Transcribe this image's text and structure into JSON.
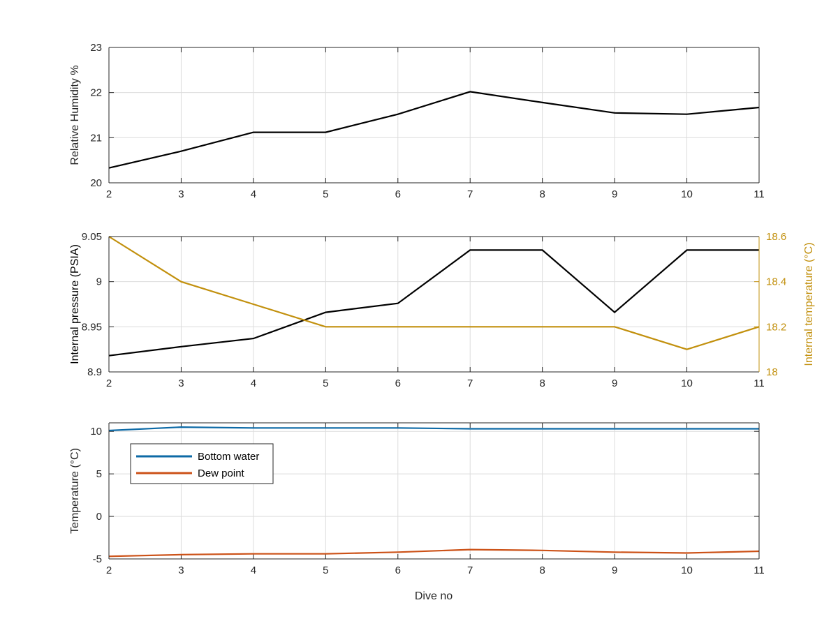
{
  "figure": {
    "xlabel": "Dive no"
  },
  "chart_data": [
    {
      "type": "line",
      "x": [
        2,
        3,
        4,
        5,
        6,
        7,
        8,
        9,
        10,
        11
      ],
      "xlim": [
        2,
        11
      ],
      "xticks": [
        2,
        3,
        4,
        5,
        6,
        7,
        8,
        9,
        10,
        11
      ],
      "ylabel": "Relative Humidity %",
      "ylim": [
        20,
        23
      ],
      "yticks": [
        20,
        21,
        22,
        23
      ],
      "grid": true,
      "series": [
        {
          "values": [
            20.33,
            20.7,
            21.12,
            21.12,
            21.52,
            22.02,
            21.78,
            21.55,
            21.52,
            21.67
          ],
          "color": "#000000"
        }
      ]
    },
    {
      "type": "line",
      "x": [
        2,
        3,
        4,
        5,
        6,
        7,
        8,
        9,
        10,
        11
      ],
      "xlim": [
        2,
        11
      ],
      "xticks": [
        2,
        3,
        4,
        5,
        6,
        7,
        8,
        9,
        10,
        11
      ],
      "ylabel": "Internal pressure (PSIA)",
      "ylim": [
        8.9,
        9.05
      ],
      "yticks": [
        8.9,
        8.95,
        9,
        9.05
      ],
      "ytick_labels": [
        "8.9",
        "8.95",
        "9",
        "9.05"
      ],
      "y2label": "Internal temperature (°C)",
      "y2lim": [
        18,
        18.6
      ],
      "y2ticks": [
        18,
        18.2,
        18.4,
        18.6
      ],
      "y2tick_labels": [
        "18",
        "18.2",
        "18.4",
        "18.6"
      ],
      "y2color": "#c2900d",
      "grid": true,
      "series": [
        {
          "axis": "left",
          "values": [
            8.918,
            8.928,
            8.937,
            8.966,
            8.976,
            9.035,
            9.035,
            8.966,
            9.035,
            9.035
          ],
          "color": "#000000"
        },
        {
          "axis": "right",
          "values": [
            18.6,
            18.4,
            18.3,
            18.2,
            18.2,
            18.2,
            18.2,
            18.2,
            18.1,
            18.2
          ],
          "color": "#c2900d"
        }
      ]
    },
    {
      "type": "line",
      "x": [
        2,
        3,
        4,
        5,
        6,
        7,
        8,
        9,
        10,
        11
      ],
      "xlim": [
        2,
        11
      ],
      "xticks": [
        2,
        3,
        4,
        5,
        6,
        7,
        8,
        9,
        10,
        11
      ],
      "ylabel": "Temperature (°C)",
      "ylim": [
        -5,
        11
      ],
      "yticks": [
        -5,
        0,
        5,
        10
      ],
      "grid": true,
      "legend": "top-left",
      "series": [
        {
          "name": "Bottom water",
          "values": [
            10.1,
            10.5,
            10.4,
            10.4,
            10.4,
            10.3,
            10.3,
            10.3,
            10.3,
            10.3
          ],
          "color": "#0d6aa6"
        },
        {
          "name": "Dew point",
          "values": [
            -4.7,
            -4.5,
            -4.4,
            -4.4,
            -4.2,
            -3.9,
            -4.0,
            -4.2,
            -4.3,
            -4.1
          ],
          "color": "#cc5218"
        }
      ]
    }
  ]
}
